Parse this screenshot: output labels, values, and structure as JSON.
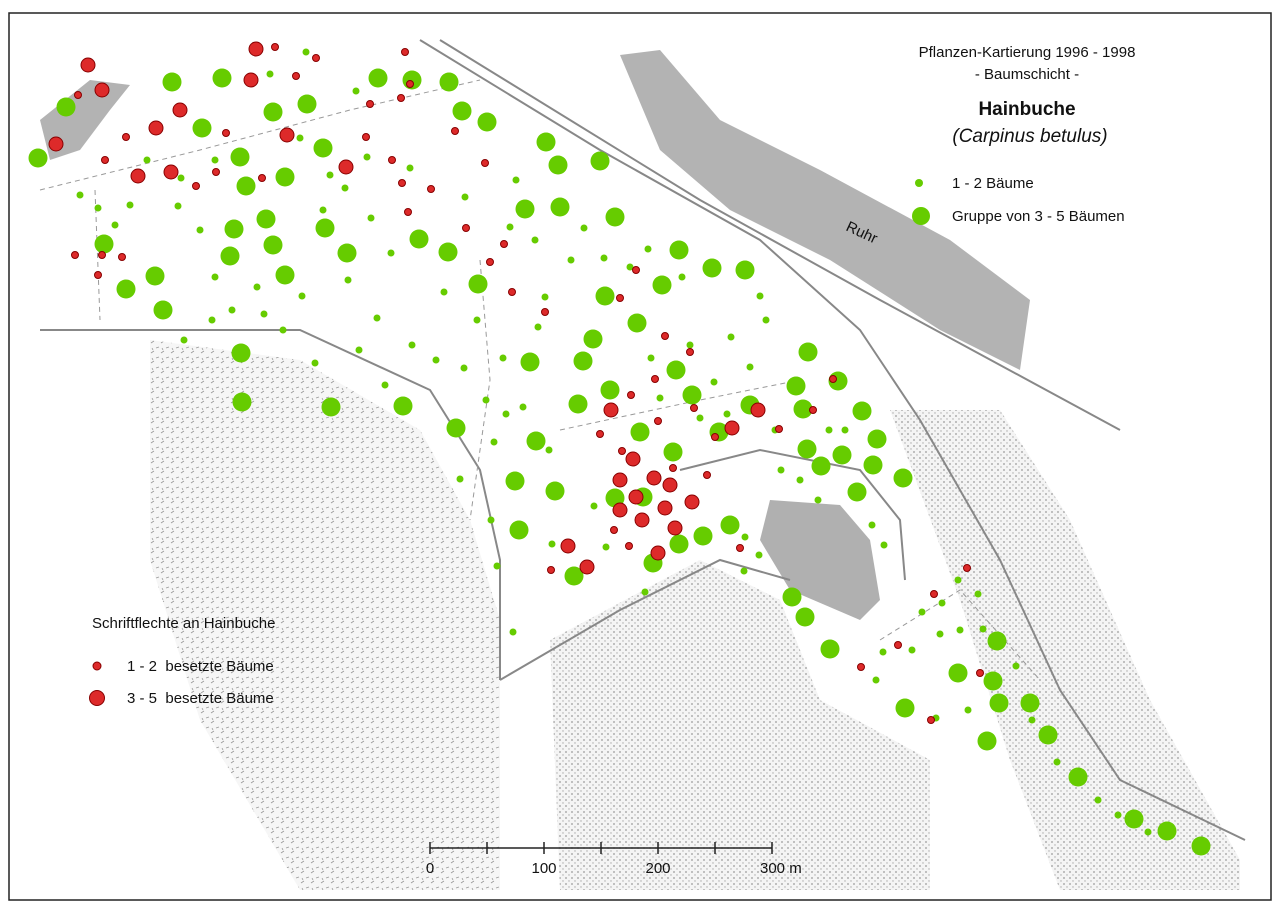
{
  "header": {
    "title": "Pflanzen-Kartierung 1996 - 1998",
    "subtitle": "- Baumschicht -",
    "species": "Hainbuche",
    "latin": "(Carpinus betulus)"
  },
  "legend_trees": {
    "items": [
      {
        "label": "1 - 2 Bäume"
      },
      {
        "label": "Gruppe von 3 - 5 Bäumen"
      }
    ]
  },
  "map_labels": {
    "river": "Ruhr"
  },
  "legend_lichen": {
    "title": "Schriftflechte an Hainbuche",
    "items": [
      {
        "label": "1 - 2  besetzte Bäume"
      },
      {
        "label": "3 - 5  besetzte Bäume"
      }
    ]
  },
  "scale_bar": {
    "labels": [
      "0",
      "100",
      "200",
      "300 m"
    ]
  }
}
